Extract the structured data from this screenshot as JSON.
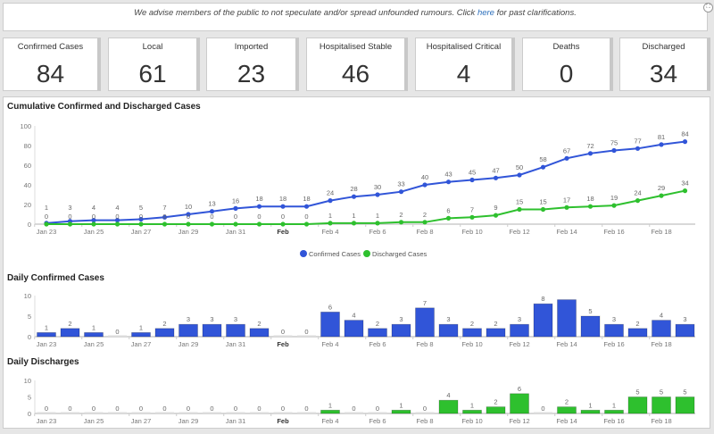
{
  "banner": {
    "text_before": "We advise members of the public to not speculate and/or spread unfounded rumours.  Click ",
    "link": "here",
    "text_after": " for past clarifications."
  },
  "cards": [
    {
      "label": "Confirmed Cases",
      "value": "84"
    },
    {
      "label": "Local",
      "value": "61"
    },
    {
      "label": "Imported",
      "value": "23"
    },
    {
      "label": "Hospitalised Stable",
      "value": "46"
    },
    {
      "label": "Hospitalised Critical",
      "value": "4"
    },
    {
      "label": "Deaths",
      "value": "0"
    },
    {
      "label": "Discharged",
      "value": "34"
    }
  ],
  "colors": {
    "confirmed": "#3155d8",
    "discharged": "#2ec02e"
  },
  "chart_data": [
    {
      "type": "line",
      "title": "Cumulative Confirmed and Discharged Cases",
      "ylim": [
        0,
        100
      ],
      "yticks": [
        0,
        20,
        40,
        60,
        80,
        100
      ],
      "xtick_labels": [
        "Jan 23",
        "Jan 25",
        "Jan 27",
        "Jan 29",
        "Jan 31",
        "Feb",
        "Feb 4",
        "Feb 6",
        "Feb 8",
        "Feb 10",
        "Feb 12",
        "Feb 14",
        "Feb 16",
        "Feb 18"
      ],
      "legend": "bottom-center",
      "series": [
        {
          "name": "Confirmed Cases",
          "values": [
            1,
            3,
            4,
            4,
            5,
            7,
            10,
            13,
            16,
            18,
            18,
            18,
            24,
            28,
            30,
            33,
            40,
            43,
            45,
            47,
            50,
            58,
            67,
            72,
            75,
            77,
            81,
            84
          ]
        },
        {
          "name": "Discharged Cases",
          "values": [
            0,
            0,
            0,
            0,
            0,
            0,
            0,
            0,
            0,
            0,
            0,
            0,
            1,
            1,
            1,
            2,
            2,
            6,
            7,
            9,
            15,
            15,
            17,
            18,
            19,
            24,
            29,
            34
          ]
        }
      ]
    },
    {
      "type": "bar",
      "title": "Daily Confirmed Cases",
      "ylim": [
        0,
        10
      ],
      "yticks": [
        0,
        5,
        10
      ],
      "values": [
        1,
        2,
        1,
        0,
        1,
        2,
        3,
        3,
        3,
        2,
        0,
        0,
        6,
        4,
        2,
        3,
        7,
        3,
        2,
        2,
        3,
        8,
        9,
        5,
        3,
        2,
        4,
        3
      ],
      "hidden_label_index": 22
    },
    {
      "type": "bar",
      "title": "Daily Discharges",
      "ylim": [
        0,
        10
      ],
      "yticks": [
        0,
        5,
        10
      ],
      "values": [
        0,
        0,
        0,
        0,
        0,
        0,
        0,
        0,
        0,
        0,
        0,
        0,
        1,
        0,
        0,
        1,
        0,
        4,
        1,
        2,
        6,
        0,
        2,
        1,
        1,
        5,
        5,
        5
      ]
    }
  ]
}
